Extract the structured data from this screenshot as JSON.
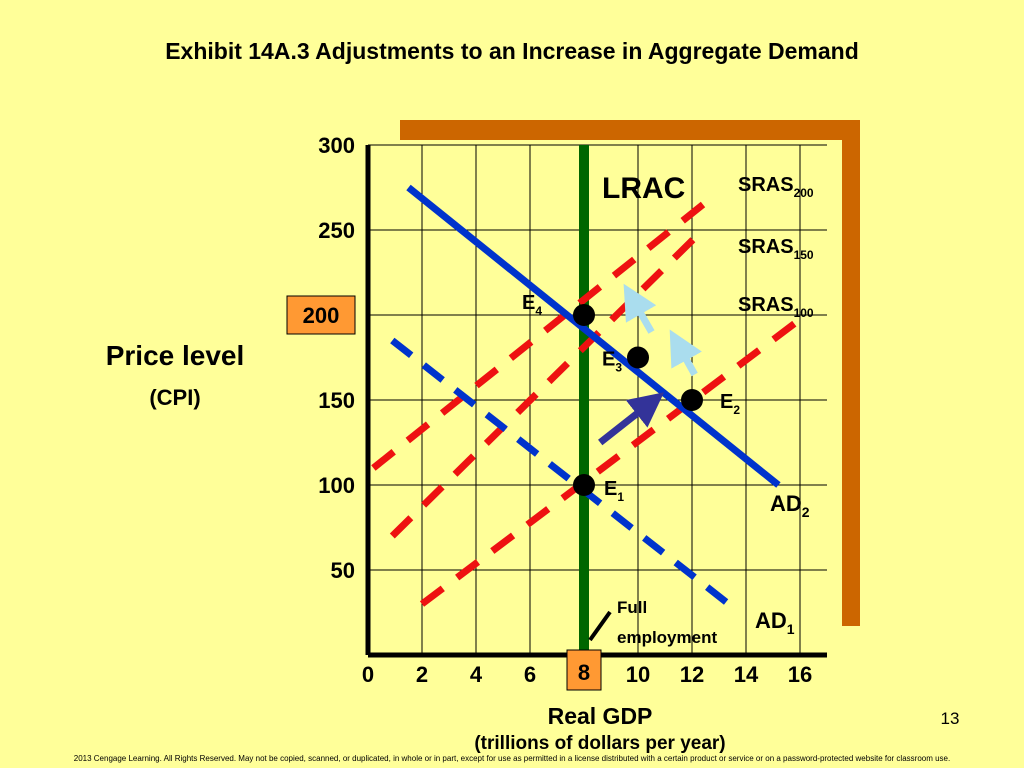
{
  "title": "Exhibit 14A.3 Adjustments to an Increase in Aggregate Demand",
  "page_number": "13",
  "footer": "2013 Cengage Learning. All Rights Reserved. May not be copied, scanned, or duplicated, in whole or in part, except for use as permitted in a license distributed with a certain product or service or on a password-protected website for classroom use.",
  "colors": {
    "background": "#FFFF99",
    "shadow": "#CC6600",
    "lrac": "#006600",
    "ad": "#0033CC",
    "sras": "#EE1111",
    "highlight_box": "#FF9933",
    "arrow_dark": "#333399",
    "arrow_light": "#AADDEE"
  },
  "chart_data": {
    "type": "line",
    "xlabel": "Real GDP",
    "xlabel_sub": "(trillions of dollars per year)",
    "ylabel": "Price level",
    "ylabel_sub": "(CPI)",
    "xlim": [
      0,
      17
    ],
    "ylim": [
      0,
      300
    ],
    "x_ticks": [
      "0",
      "2",
      "4",
      "6",
      "8",
      "10",
      "12",
      "14",
      "16"
    ],
    "y_ticks": [
      "50",
      "100",
      "150",
      "200",
      "250",
      "300"
    ],
    "highlight_x": "8",
    "highlight_y": "200",
    "lrac": {
      "label": "LRAC",
      "x": 8
    },
    "ad_curves": [
      {
        "name": "AD",
        "sub": "1",
        "style": "dashed",
        "points": [
          [
            0.9,
            185
          ],
          [
            13.6,
            27
          ]
        ]
      },
      {
        "name": "AD",
        "sub": "2",
        "style": "solid",
        "points": [
          [
            1.5,
            275
          ],
          [
            15.2,
            100
          ]
        ]
      }
    ],
    "sras_curves": [
      {
        "name": "SRAS",
        "sub": "100",
        "points": [
          [
            2.0,
            30
          ],
          [
            15.8,
            195
          ]
        ]
      },
      {
        "name": "SRAS",
        "sub": "150",
        "points": [
          [
            0.9,
            70
          ],
          [
            12.4,
            250
          ]
        ]
      },
      {
        "name": "SRAS",
        "sub": "200",
        "points": [
          [
            0.2,
            110
          ],
          [
            12.8,
            270
          ]
        ]
      }
    ],
    "equilibria": [
      {
        "label": "E",
        "sub": "1",
        "x": 8,
        "y": 100
      },
      {
        "label": "E",
        "sub": "2",
        "x": 12,
        "y": 150
      },
      {
        "label": "E",
        "sub": "3",
        "x": 10,
        "y": 175
      },
      {
        "label": "E",
        "sub": "4",
        "x": 8,
        "y": 200
      }
    ],
    "arrows": [
      {
        "from": [
          8.6,
          125
        ],
        "to": [
          10.6,
          150
        ],
        "color": "dark"
      },
      {
        "from": [
          12.1,
          165
        ],
        "to": [
          11.4,
          185
        ],
        "color": "light"
      },
      {
        "from": [
          10.5,
          190
        ],
        "to": [
          9.7,
          212
        ],
        "color": "light"
      }
    ],
    "annotation": {
      "line1": "Full",
      "line2": "employment"
    }
  }
}
